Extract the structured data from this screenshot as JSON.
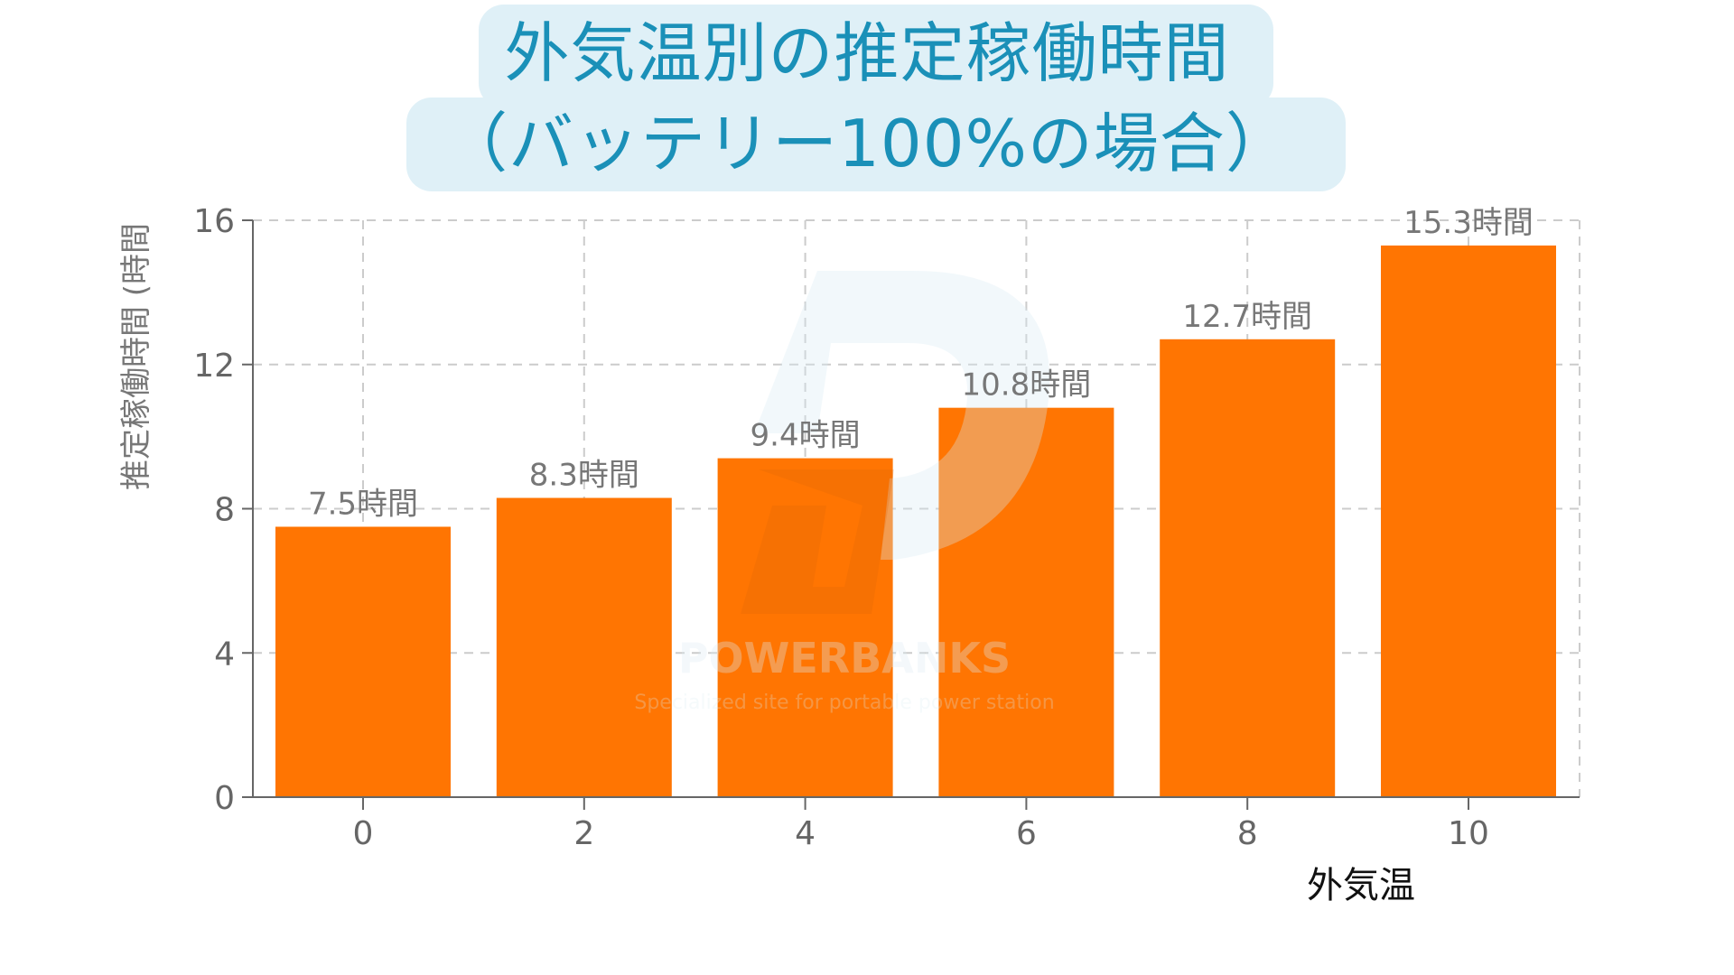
{
  "title": {
    "line1": "外気温別の推定稼働時間",
    "line2": "（バッテリー100%の場合）"
  },
  "watermark": {
    "brand": "POWERBANKS",
    "tagline": "Specialized site for portable power station"
  },
  "colors": {
    "bar": "#ff7502",
    "title_text": "#1a90b8",
    "title_bg": "#dff0f7",
    "axis": "#666666",
    "grid": "#cccccc",
    "label": "#777777"
  },
  "chart_data": {
    "type": "bar",
    "title": "外気温別の推定稼働時間（バッテリー100%の場合）",
    "xlabel": "外気温",
    "ylabel": "推定稼働時間 (時間",
    "categories": [
      "0",
      "2",
      "4",
      "6",
      "8",
      "10"
    ],
    "values": [
      7.5,
      8.3,
      9.4,
      10.8,
      12.7,
      15.3
    ],
    "value_labels": [
      "7.5時間",
      "8.3時間",
      "9.4時間",
      "10.8時間",
      "12.7時間",
      "15.3時間"
    ],
    "yticks": [
      0,
      4,
      8,
      12,
      16
    ],
    "ylim": [
      0,
      16
    ],
    "grid": true,
    "legend": null
  }
}
